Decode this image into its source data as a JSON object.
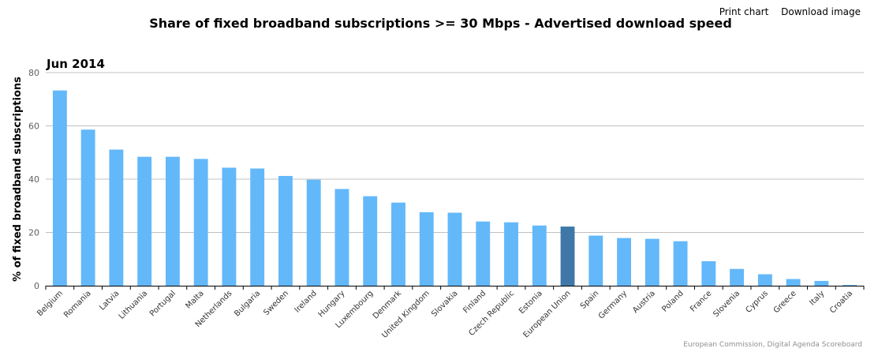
{
  "menu": {
    "print": "Print chart",
    "download": "Download image"
  },
  "credits": "European Commission, Digital Agenda Scoreboard",
  "colors": {
    "bar": "#63b8fa",
    "highlight": "#3f78a8",
    "grid": "#c0c0c0",
    "axis": "#000000"
  },
  "chart_data": {
    "type": "bar",
    "title": "Share of fixed broadband subscriptions >= 30 Mbps - Advertised download speed",
    "subtitle": "Jun 2014",
    "ylabel": "% of fixed broadband subscriptions",
    "xlabel": "",
    "ylim": [
      0,
      80
    ],
    "yticks": [
      0,
      20,
      40,
      60,
      80
    ],
    "grid": true,
    "highlight_category": "European Union",
    "categories": [
      "Belgium",
      "Romania",
      "Latvia",
      "Lithuania",
      "Portugal",
      "Malta",
      "Netherlands",
      "Bulgaria",
      "Sweden",
      "Ireland",
      "Hungary",
      "Luxembourg",
      "Denmark",
      "United Kingdom",
      "Slovakia",
      "Finland",
      "Czech Republic",
      "Estonia",
      "European Union",
      "Spain",
      "Germany",
      "Austria",
      "Poland",
      "France",
      "Slovenia",
      "Cyprus",
      "Greece",
      "Italy",
      "Croatia"
    ],
    "values": [
      73.3,
      58.6,
      51.1,
      48.4,
      48.4,
      47.6,
      44.3,
      44.0,
      41.2,
      39.8,
      36.3,
      33.6,
      31.2,
      27.6,
      27.4,
      24.1,
      23.8,
      22.6,
      22.2,
      18.8,
      17.9,
      17.6,
      16.7,
      9.2,
      6.3,
      4.3,
      2.5,
      1.8,
      0.3
    ]
  }
}
